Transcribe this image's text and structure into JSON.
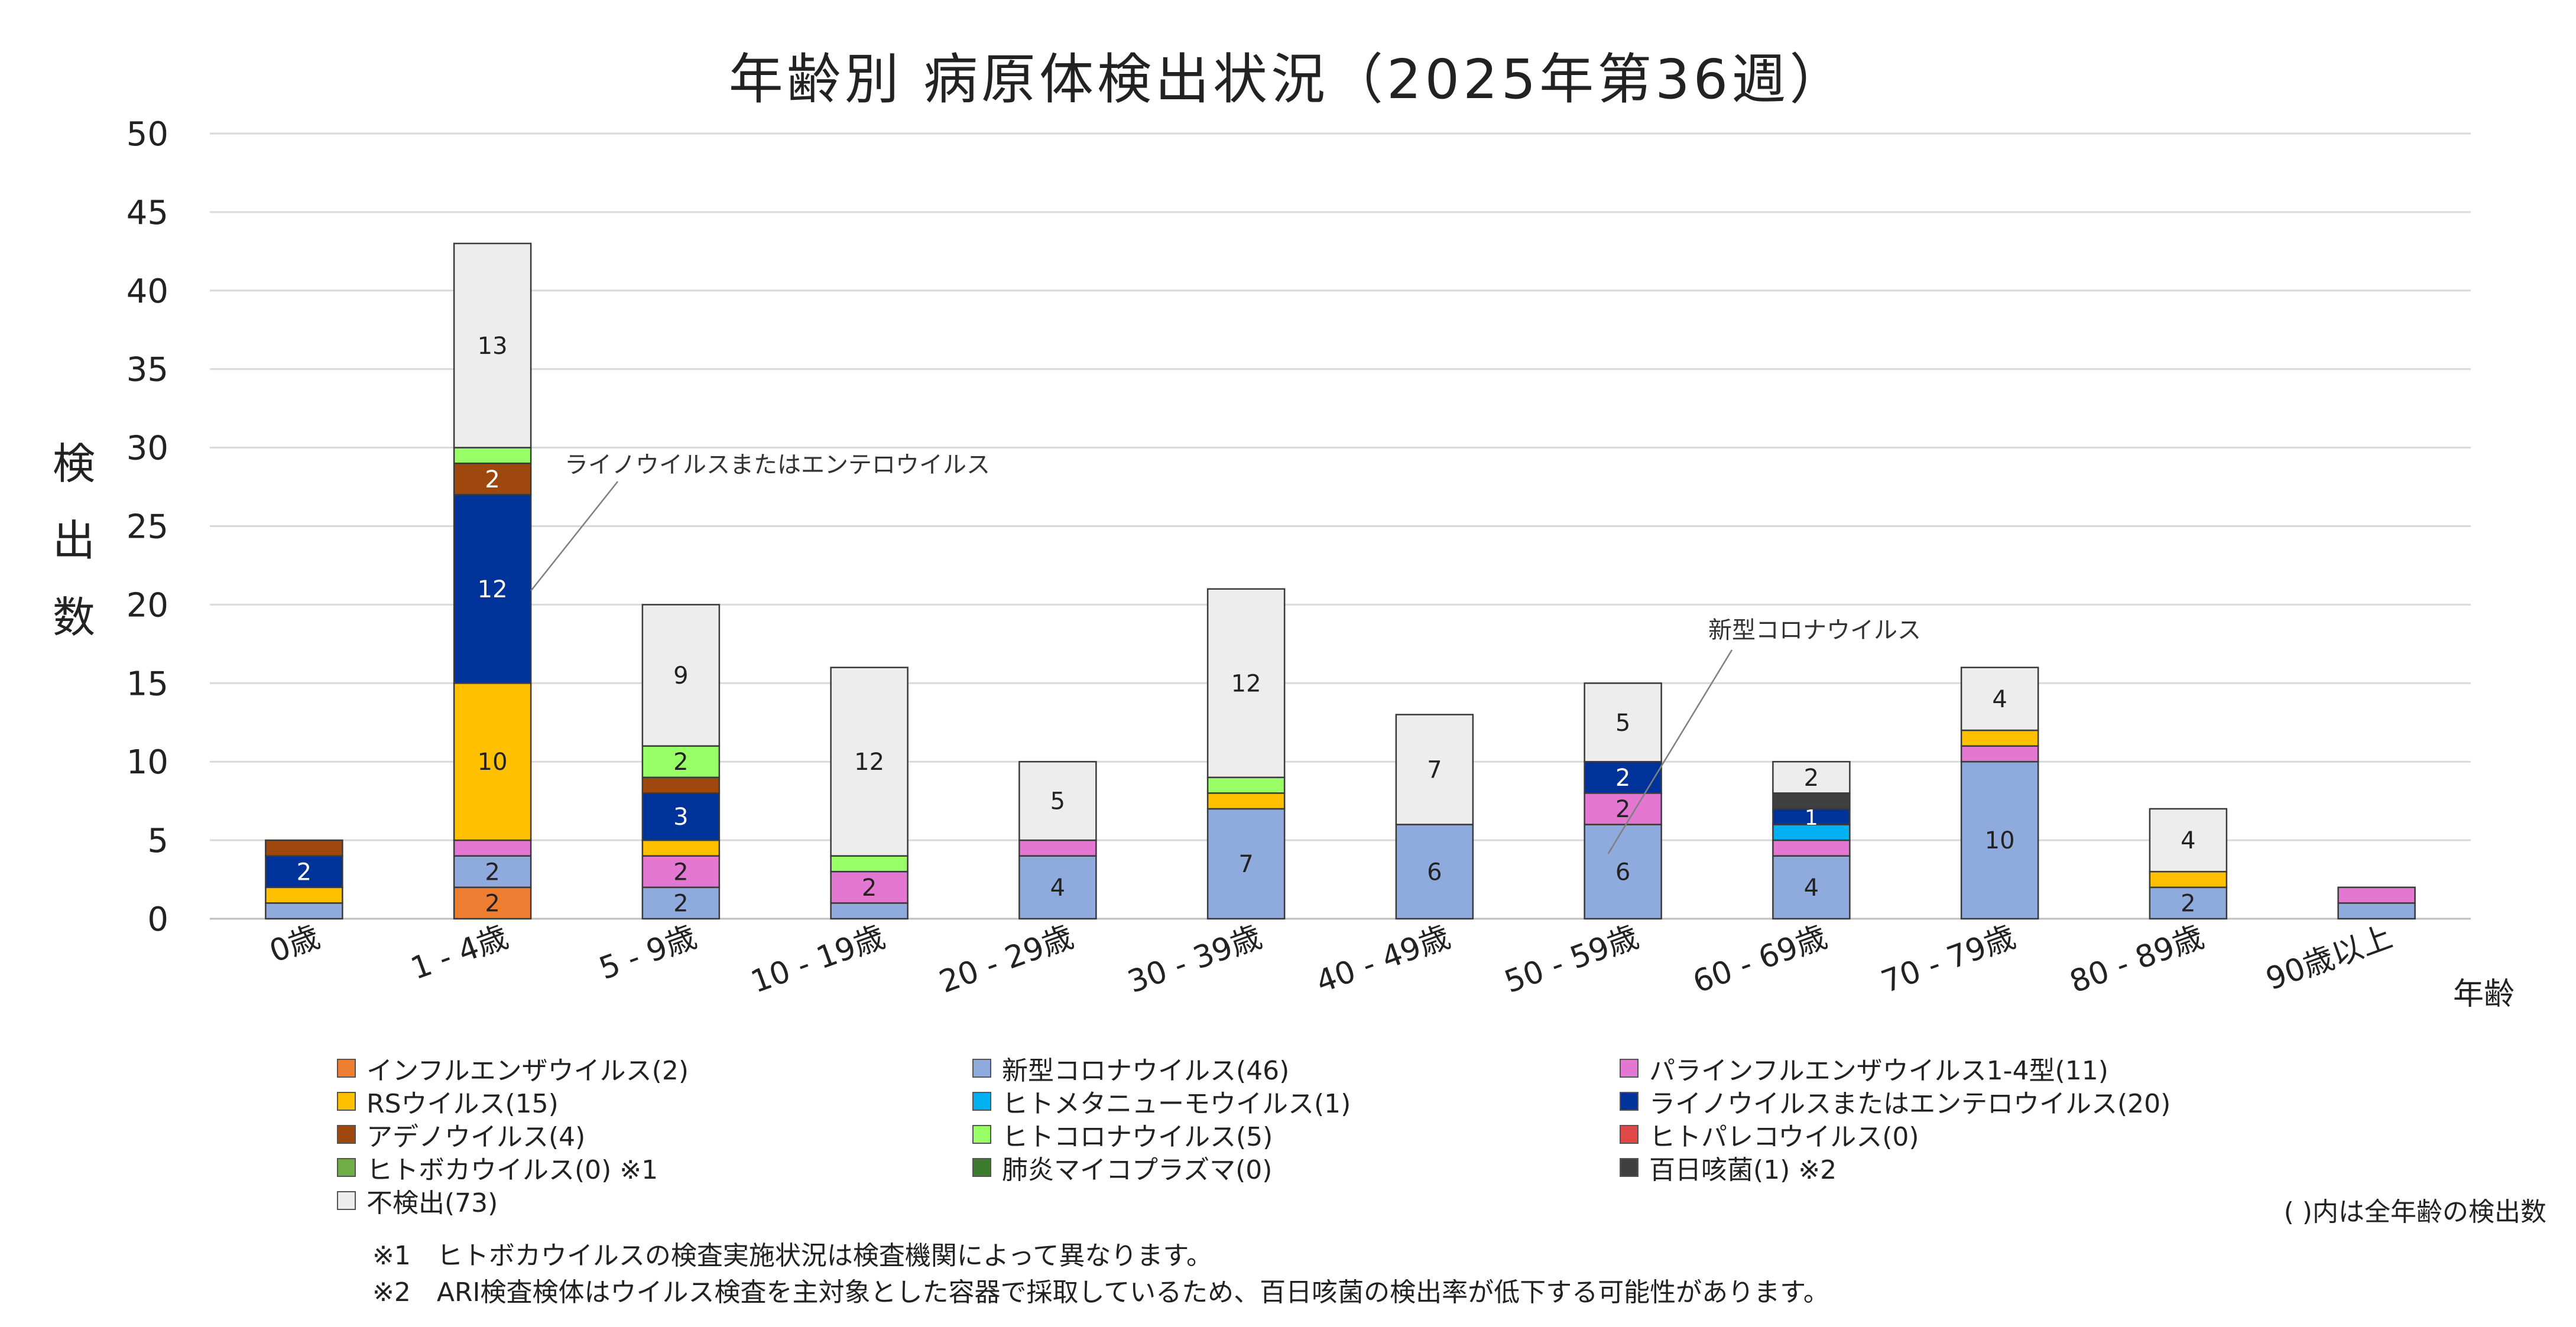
{
  "title": "年齢別 病原体検出状況（2025年第36週）",
  "ylabel": "検出数",
  "xlabel": "年齢",
  "paren_note": "( )内は全年齢の検出数",
  "footnotes": [
    "※1　ヒトボカウイルスの検査実施状況は検査機関によって異なります。",
    "※2　ARI検査検体はウイルス検査を主対象とした容器で採取しているため、百日咳菌の検出率が低下する可能性があります。"
  ],
  "chart_data": {
    "type": "bar",
    "stacked": true,
    "categories": [
      "0歳",
      "1 - 4歳",
      "5 - 9歳",
      "10 - 19歳",
      "20 - 29歳",
      "30 - 39歳",
      "40 - 49歳",
      "50 - 59歳",
      "60 - 69歳",
      "70 - 79歳",
      "80 - 89歳",
      "90歳以上"
    ],
    "ylim": [
      0,
      50
    ],
    "yticks": [
      0,
      5,
      10,
      15,
      20,
      25,
      30,
      35,
      40,
      45,
      50
    ],
    "grid": true,
    "legend_position": "bottom",
    "series": [
      {
        "name": "インフルエンザウイルス",
        "total": 2,
        "color": "#ED7D31",
        "values": [
          0,
          2,
          0,
          0,
          0,
          0,
          0,
          0,
          0,
          0,
          0,
          0
        ]
      },
      {
        "name": "新型コロナウイルス",
        "total": 46,
        "color": "#8FAADC",
        "values": [
          1,
          2,
          2,
          1,
          4,
          7,
          6,
          6,
          4,
          10,
          2,
          1
        ]
      },
      {
        "name": "パラインフルエンザウイルス1-4型",
        "total": 11,
        "color": "#E377D1",
        "values": [
          0,
          1,
          2,
          2,
          1,
          0,
          0,
          2,
          1,
          1,
          0,
          1
        ]
      },
      {
        "name": "RSウイルス",
        "total": 15,
        "color": "#FFC000",
        "values": [
          1,
          10,
          1,
          0,
          0,
          1,
          0,
          0,
          0,
          1,
          1,
          0
        ]
      },
      {
        "name": "ヒトメタニューモウイルス",
        "total": 1,
        "color": "#00B0F0",
        "values": [
          0,
          0,
          0,
          0,
          0,
          0,
          0,
          0,
          1,
          0,
          0,
          0
        ]
      },
      {
        "name": "ライノウイルスまたはエンテロウイルス",
        "total": 20,
        "color": "#003399",
        "values": [
          2,
          12,
          3,
          0,
          0,
          0,
          0,
          2,
          1,
          0,
          0,
          0
        ]
      },
      {
        "name": "アデノウイルス",
        "total": 4,
        "color": "#9E480E",
        "values": [
          1,
          2,
          1,
          0,
          0,
          0,
          0,
          0,
          0,
          0,
          0,
          0
        ]
      },
      {
        "name": "ヒトコロナウイルス",
        "total": 5,
        "color": "#99FF66",
        "values": [
          0,
          1,
          2,
          1,
          0,
          1,
          0,
          0,
          0,
          0,
          0,
          0
        ]
      },
      {
        "name": "ヒトパレコウイルス",
        "total": 0,
        "color": "#E04848",
        "values": [
          0,
          0,
          0,
          0,
          0,
          0,
          0,
          0,
          0,
          0,
          0,
          0
        ]
      },
      {
        "name": "ヒトボカウイルス",
        "total": 0,
        "note": "※1",
        "color": "#70AD47",
        "values": [
          0,
          0,
          0,
          0,
          0,
          0,
          0,
          0,
          0,
          0,
          0,
          0
        ]
      },
      {
        "name": "肺炎マイコプラズマ",
        "total": 0,
        "color": "#3C7A2E",
        "values": [
          0,
          0,
          0,
          0,
          0,
          0,
          0,
          0,
          0,
          0,
          0,
          0
        ]
      },
      {
        "name": "百日咳菌",
        "total": 1,
        "note": "※2",
        "color": "#404040",
        "values": [
          0,
          0,
          0,
          0,
          0,
          0,
          0,
          0,
          1,
          0,
          0,
          0
        ]
      },
      {
        "name": "不検出",
        "total": 73,
        "color": "#EDEDED",
        "values": [
          0,
          13,
          9,
          12,
          5,
          12,
          7,
          5,
          2,
          4,
          4,
          0
        ]
      }
    ],
    "annotations": [
      {
        "text": "ライノウイルスまたはエンテロウイルス",
        "category": "1 - 4歳",
        "series": "ライノウイルスまたはエンテロウイルス"
      },
      {
        "text": "新型コロナウイルス",
        "category": "50 - 59歳",
        "series": "新型コロナウイルス"
      }
    ]
  },
  "legend_items": [
    {
      "label": "インフルエンザウイルス(2)",
      "color": "#ED7D31"
    },
    {
      "label": "新型コロナウイルス(46)",
      "color": "#8FAADC"
    },
    {
      "label": "パラインフルエンザウイルス1-4型(11)",
      "color": "#E377D1"
    },
    {
      "label": "RSウイルス(15)",
      "color": "#FFC000"
    },
    {
      "label": "ヒトメタニューモウイルス(1)",
      "color": "#00B0F0"
    },
    {
      "label": "ライノウイルスまたはエンテロウイルス(20)",
      "color": "#003399"
    },
    {
      "label": "アデノウイルス(4)",
      "color": "#9E480E"
    },
    {
      "label": "ヒトコロナウイルス(5)",
      "color": "#99FF66"
    },
    {
      "label": "ヒトパレコウイルス(0)",
      "color": "#E04848"
    },
    {
      "label": "ヒトボカウイルス(0) ※1",
      "color": "#70AD47"
    },
    {
      "label": "肺炎マイコプラズマ(0)",
      "color": "#3C7A2E"
    },
    {
      "label": "百日咳菌(1) ※2",
      "color": "#404040"
    },
    {
      "label": "不検出(73)",
      "color": "#EDEDED"
    }
  ]
}
